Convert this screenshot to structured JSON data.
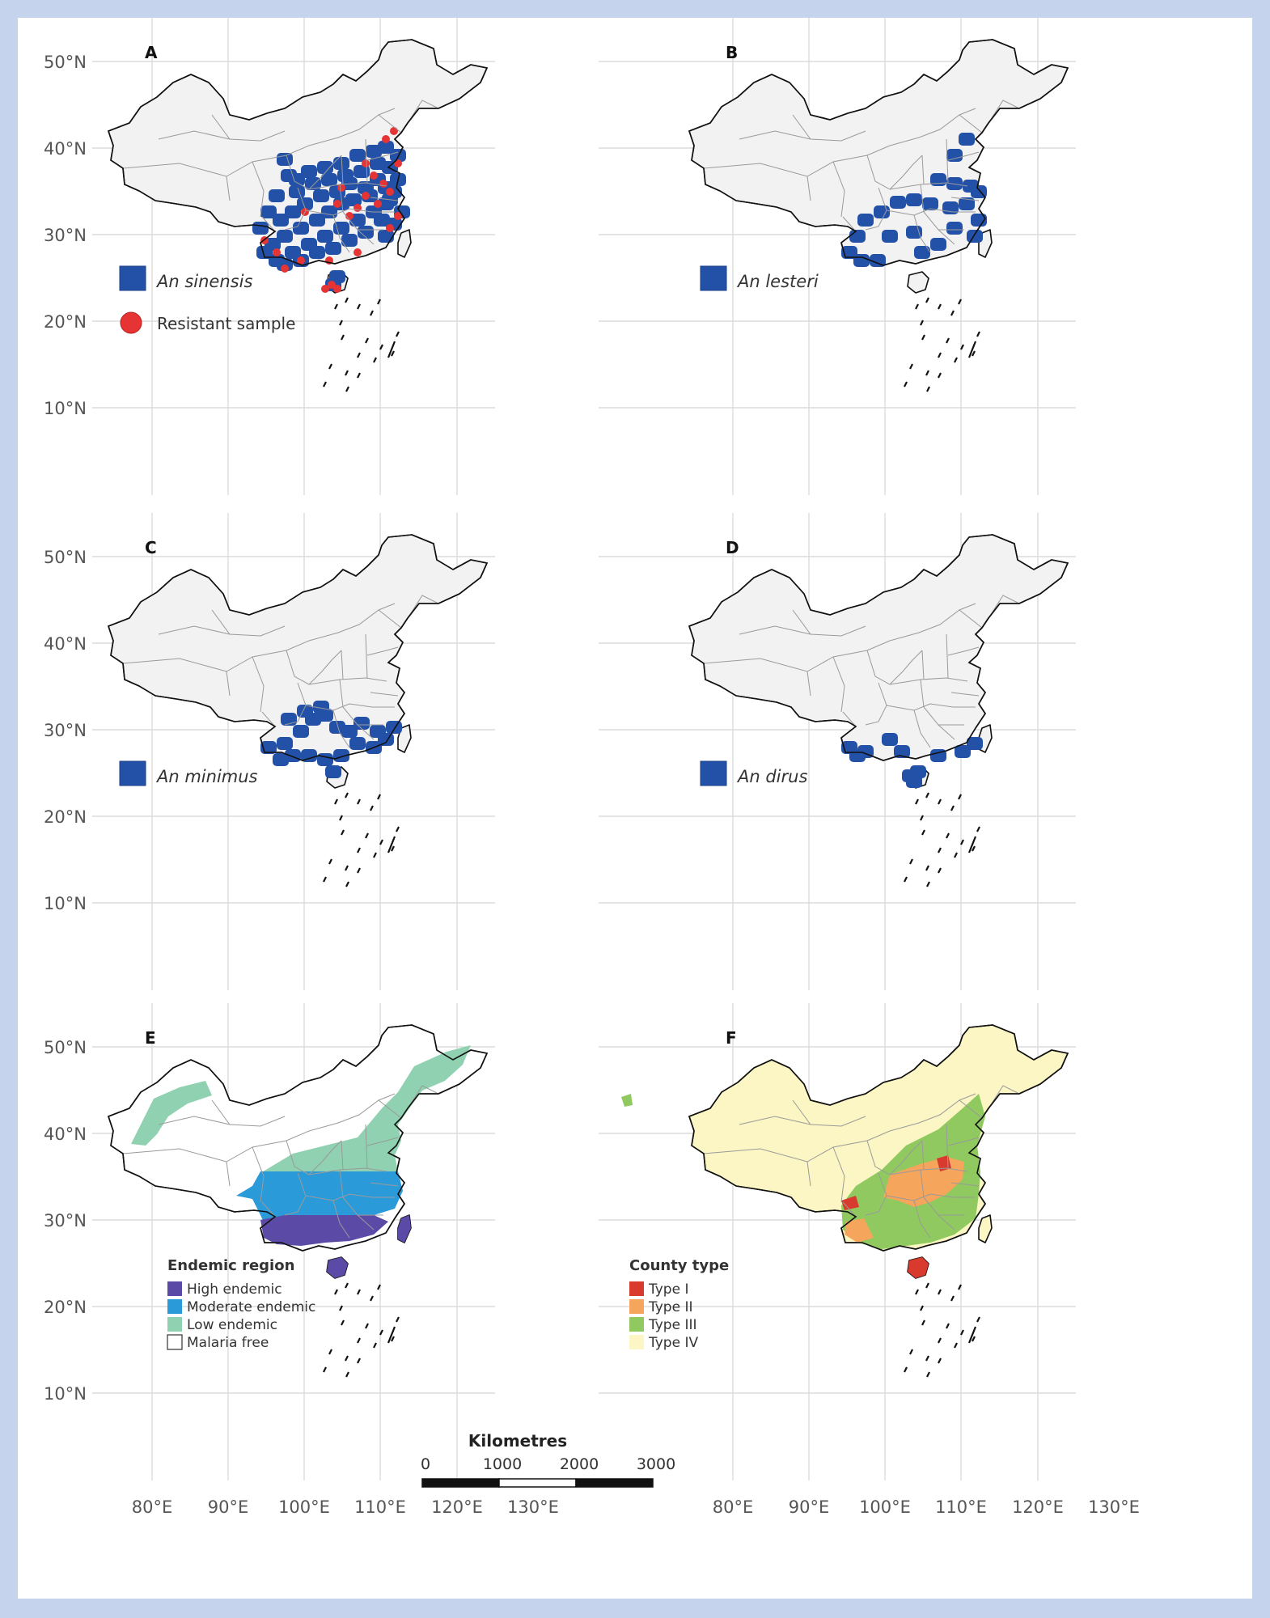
{
  "lat_labels": [
    "50°N",
    "40°N",
    "30°N",
    "20°N",
    "10°N"
  ],
  "lon_labels": [
    "80°E",
    "90°E",
    "100°E",
    "110°E",
    "120°E",
    "130°E"
  ],
  "panels": [
    {
      "id": "A",
      "letter": "A",
      "base_fill": "#f2f2f2",
      "legend": [
        {
          "kind": "square",
          "color": "#2351a8",
          "label": "An sinensis",
          "italic": true
        },
        {
          "kind": "circle",
          "color": "#e63434",
          "label": "Resistant sample",
          "italic": false
        }
      ]
    },
    {
      "id": "B",
      "letter": "B",
      "base_fill": "#f2f2f2",
      "legend": [
        {
          "kind": "square",
          "color": "#2351a8",
          "label": "An lesteri",
          "italic": true
        }
      ]
    },
    {
      "id": "C",
      "letter": "C",
      "base_fill": "#f2f2f2",
      "legend": [
        {
          "kind": "square",
          "color": "#2351a8",
          "label": "An minimus",
          "italic": true
        }
      ]
    },
    {
      "id": "D",
      "letter": "D",
      "base_fill": "#f2f2f2",
      "legend": [
        {
          "kind": "square",
          "color": "#2351a8",
          "label": "An dirus",
          "italic": true
        }
      ]
    },
    {
      "id": "E",
      "letter": "E",
      "base_fill": "#ffffff",
      "legend_title": "Endemic region",
      "legend": [
        {
          "color": "#5b4aa6",
          "label": "High endemic"
        },
        {
          "color": "#2b9ad9",
          "label": "Moderate endemic"
        },
        {
          "color": "#8fd1b0",
          "label": "Low endemic"
        },
        {
          "color": "#ffffff",
          "label": "Malaria free"
        }
      ]
    },
    {
      "id": "F",
      "letter": "F",
      "base_fill": "#fbf6c3",
      "legend_title": "County type",
      "legend": [
        {
          "color": "#d93a2e",
          "label": "Type I"
        },
        {
          "color": "#f5a55c",
          "label": "Type II"
        },
        {
          "color": "#8fc95f",
          "label": "Type III"
        },
        {
          "color": "#fbf6c3",
          "label": "Type IV"
        }
      ]
    }
  ],
  "scalebar": {
    "title": "Kilometres",
    "ticks": [
      "0",
      "1000",
      "2000",
      "3000"
    ]
  }
}
